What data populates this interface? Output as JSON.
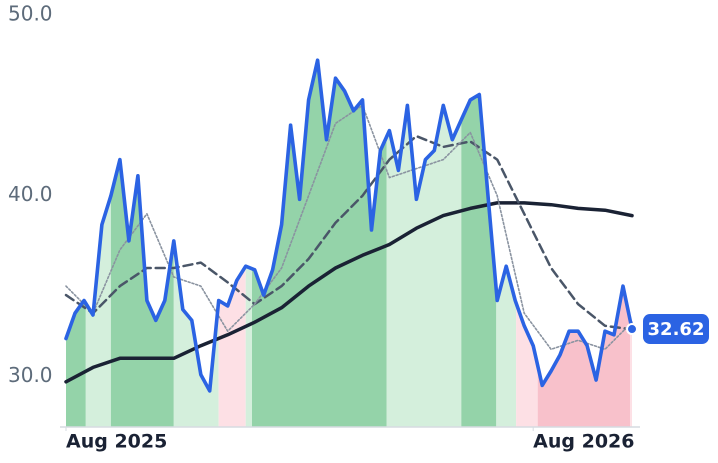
{
  "chart_data": {
    "type": "line",
    "xlim": [
      0,
      63
    ],
    "ylim": [
      27.2,
      50.0
    ],
    "xticks": [
      {
        "value": 0,
        "label": "Aug 2025"
      },
      {
        "value": 52,
        "label": "Aug 2026"
      }
    ],
    "yticks": [
      {
        "value": 30,
        "label": "30.0"
      },
      {
        "value": 40,
        "label": "40.0"
      },
      {
        "value": 50,
        "label": "50.0"
      }
    ],
    "regions": [
      {
        "x0": 0,
        "x1": 2.2,
        "color": "#94d3a9"
      },
      {
        "x0": 2.2,
        "x1": 5,
        "color": "#d4efdc"
      },
      {
        "x0": 5,
        "x1": 12,
        "color": "#94d3a9"
      },
      {
        "x0": 12,
        "x1": 17,
        "color": "#d4efdc"
      },
      {
        "x0": 17,
        "x1": 20,
        "color": "#fde0e5"
      },
      {
        "x0": 20,
        "x1": 20.7,
        "color": "#d4efdc"
      },
      {
        "x0": 20.7,
        "x1": 35.7,
        "color": "#94d3a9"
      },
      {
        "x0": 35.7,
        "x1": 44,
        "color": "#d4efdc"
      },
      {
        "x0": 44,
        "x1": 47.9,
        "color": "#94d3a9"
      },
      {
        "x0": 47.9,
        "x1": 50.1,
        "color": "#d4efdc"
      },
      {
        "x0": 50.1,
        "x1": 52.5,
        "color": "#fde0e5"
      },
      {
        "x0": 52.5,
        "x1": 62.8,
        "color": "#f8c1cb"
      },
      {
        "x0": 62.8,
        "x1": 63,
        "color": "#fde0e5"
      }
    ],
    "series": [
      {
        "style": "price",
        "color": "#2b63e3",
        "x": [
          0,
          1,
          2,
          3,
          4,
          5,
          6,
          7,
          8,
          9,
          10,
          11,
          12,
          13,
          14,
          15,
          16,
          17,
          18,
          19,
          20,
          21,
          22,
          23,
          24,
          25,
          26,
          27,
          28,
          29,
          30,
          31,
          32,
          33,
          34,
          35,
          36,
          37,
          38,
          39,
          40,
          41,
          42,
          43,
          44,
          45,
          46,
          47,
          48,
          49,
          50,
          51,
          52,
          53,
          54,
          55,
          56,
          57,
          58,
          59,
          60,
          61,
          62,
          63
        ],
        "values": [
          32.1,
          33.5,
          34.2,
          33.4,
          38.4,
          40.0,
          42.0,
          37.5,
          41.1,
          34.2,
          33.1,
          34.2,
          37.5,
          33.7,
          33.1,
          30.1,
          29.2,
          34.2,
          33.9,
          35.3,
          36.1,
          35.9,
          34.5,
          35.9,
          38.4,
          43.9,
          39.8,
          45.3,
          47.5,
          43.1,
          46.5,
          45.8,
          44.7,
          45.3,
          38.1,
          42.5,
          43.6,
          41.4,
          45.0,
          39.8,
          42.0,
          42.5,
          45.0,
          43.1,
          44.2,
          45.3,
          45.6,
          39.8,
          34.2,
          36.1,
          34.2,
          32.8,
          31.7,
          29.5,
          30.3,
          31.2,
          32.5,
          32.5,
          31.7,
          29.8,
          32.5,
          32.3,
          35.0,
          32.62
        ],
        "value_labels": [
          null,
          null,
          null,
          null,
          null,
          null,
          null,
          null,
          null,
          null,
          null,
          null,
          null,
          null,
          null,
          null,
          null,
          null,
          null,
          null,
          null,
          null,
          null,
          null,
          null,
          null,
          null,
          null,
          null,
          null,
          null,
          null,
          null,
          null,
          null,
          null,
          null,
          null,
          null,
          null,
          null,
          null,
          null,
          null,
          null,
          null,
          null,
          null,
          null,
          null,
          null,
          null,
          null,
          null,
          null,
          null,
          null,
          null,
          null,
          null,
          null,
          null,
          null,
          "32.62"
        ]
      },
      {
        "style": "slow",
        "color": "#1a2234",
        "x": [
          0,
          3,
          6,
          9,
          12,
          15,
          18,
          21,
          24,
          27,
          30,
          33,
          36,
          39,
          42,
          45,
          48,
          51,
          54,
          57,
          60,
          63
        ],
        "values": [
          29.7,
          30.5,
          31.0,
          31.0,
          31.0,
          31.7,
          32.3,
          33.0,
          33.8,
          35.0,
          36.0,
          36.7,
          37.3,
          38.2,
          38.9,
          39.3,
          39.6,
          39.6,
          39.5,
          39.3,
          39.2,
          38.9
        ]
      },
      {
        "style": "dashed",
        "color": "#4a5668",
        "x": [
          0,
          3,
          6,
          9,
          12,
          15,
          18,
          21,
          24,
          27,
          30,
          33,
          36,
          39,
          42,
          45,
          48,
          51,
          54,
          57,
          60,
          63
        ],
        "values": [
          34.5,
          33.5,
          35.0,
          36.0,
          36.0,
          36.3,
          35.2,
          34.0,
          35.0,
          36.5,
          38.5,
          40.0,
          42.0,
          43.3,
          42.7,
          43.0,
          42.0,
          39.0,
          36.0,
          34.0,
          32.8,
          32.6
        ]
      },
      {
        "style": "dotted",
        "color": "#8a93a0",
        "x": [
          0,
          3,
          6,
          9,
          12,
          15,
          18,
          21,
          24,
          27,
          30,
          33,
          36,
          39,
          42,
          45,
          48,
          51,
          54,
          57,
          60,
          63
        ],
        "values": [
          35.0,
          33.5,
          37.0,
          39.0,
          35.5,
          35.0,
          32.5,
          34.0,
          36.0,
          40.0,
          44.0,
          45.0,
          41.0,
          41.5,
          42.0,
          43.5,
          40.0,
          33.5,
          31.5,
          32.0,
          31.5,
          33.0
        ]
      }
    ]
  }
}
